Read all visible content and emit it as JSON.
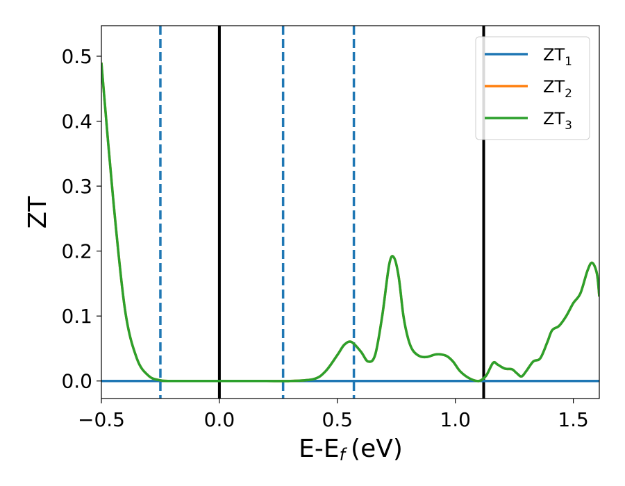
{
  "chart_data": {
    "type": "line",
    "title": "",
    "xlabel": "E-E",
    "xlabel_sub": "f",
    "xlabel_unit": "(eV)",
    "ylabel": "ZT",
    "xlim": [
      -0.5,
      1.61
    ],
    "ylim": [
      -0.027,
      0.547
    ],
    "xticks": [
      -0.5,
      0.0,
      0.5,
      1.0,
      1.5
    ],
    "xtick_labels": [
      "−0.5",
      "0.0",
      "0.5",
      "1.0",
      "1.5"
    ],
    "yticks": [
      0.0,
      0.1,
      0.2,
      0.3,
      0.4,
      0.5
    ],
    "ytick_labels": [
      "0.0",
      "0.1",
      "0.2",
      "0.3",
      "0.4",
      "0.5"
    ],
    "grid": false,
    "legend_position": "top-right",
    "vlines": [
      {
        "x": -0.25,
        "style": "dashed",
        "color": "#1f77b4"
      },
      {
        "x": 0.0,
        "style": "solid",
        "color": "#000000"
      },
      {
        "x": 0.27,
        "style": "dashed",
        "color": "#1f77b4"
      },
      {
        "x": 0.57,
        "style": "dashed",
        "color": "#1f77b4"
      },
      {
        "x": 1.12,
        "style": "solid",
        "color": "#000000"
      }
    ],
    "series": [
      {
        "name": "ZT",
        "name_sub": "1",
        "color": "#1f77b4",
        "x": [
          -0.5,
          1.61
        ],
        "y": [
          0.0,
          0.0
        ]
      },
      {
        "name": "ZT",
        "name_sub": "2",
        "color": "#ff7f0e",
        "x": [
          -0.5,
          -0.45,
          -0.4,
          -0.35,
          -0.3,
          -0.25,
          -0.2,
          -0.1,
          0.0,
          0.1,
          0.2,
          0.3,
          0.4,
          0.45,
          0.5,
          0.53,
          0.56,
          0.6,
          0.63,
          0.66,
          0.69,
          0.72,
          0.74,
          0.76,
          0.78,
          0.8,
          0.82,
          0.85,
          0.88,
          0.92,
          0.96,
          0.99,
          1.02,
          1.06,
          1.1,
          1.13,
          1.16,
          1.18,
          1.21,
          1.24,
          1.26,
          1.28,
          1.3,
          1.33,
          1.36,
          1.39,
          1.41,
          1.44,
          1.47,
          1.5,
          1.53,
          1.56,
          1.58,
          1.6,
          1.61
        ],
        "y": [
          0.49,
          0.28,
          0.11,
          0.035,
          0.008,
          0.001,
          0.0,
          0.0,
          0.0,
          0.0,
          0.0,
          0.0,
          0.003,
          0.015,
          0.04,
          0.056,
          0.06,
          0.045,
          0.03,
          0.04,
          0.1,
          0.18,
          0.19,
          0.16,
          0.1,
          0.065,
          0.047,
          0.038,
          0.037,
          0.041,
          0.039,
          0.03,
          0.015,
          0.004,
          0.0,
          0.008,
          0.028,
          0.025,
          0.019,
          0.018,
          0.012,
          0.007,
          0.015,
          0.03,
          0.035,
          0.06,
          0.078,
          0.085,
          0.1,
          0.12,
          0.135,
          0.17,
          0.182,
          0.165,
          0.13
        ]
      },
      {
        "name": "ZT",
        "name_sub": "3",
        "color": "#2ca02c",
        "x": [
          -0.5,
          -0.45,
          -0.4,
          -0.35,
          -0.3,
          -0.25,
          -0.2,
          -0.1,
          0.0,
          0.1,
          0.2,
          0.3,
          0.4,
          0.45,
          0.5,
          0.53,
          0.56,
          0.6,
          0.63,
          0.66,
          0.69,
          0.72,
          0.74,
          0.76,
          0.78,
          0.8,
          0.82,
          0.85,
          0.88,
          0.92,
          0.96,
          0.99,
          1.02,
          1.06,
          1.1,
          1.13,
          1.16,
          1.18,
          1.21,
          1.24,
          1.26,
          1.28,
          1.3,
          1.33,
          1.36,
          1.39,
          1.41,
          1.44,
          1.47,
          1.5,
          1.53,
          1.56,
          1.58,
          1.6,
          1.61
        ],
        "y": [
          0.49,
          0.28,
          0.11,
          0.035,
          0.008,
          0.001,
          0.0,
          0.0,
          0.0,
          0.0,
          0.0,
          0.0,
          0.003,
          0.015,
          0.04,
          0.056,
          0.06,
          0.045,
          0.03,
          0.04,
          0.1,
          0.18,
          0.19,
          0.16,
          0.1,
          0.065,
          0.047,
          0.038,
          0.037,
          0.041,
          0.039,
          0.03,
          0.015,
          0.004,
          0.0,
          0.008,
          0.028,
          0.025,
          0.019,
          0.018,
          0.012,
          0.007,
          0.015,
          0.03,
          0.035,
          0.06,
          0.078,
          0.085,
          0.1,
          0.12,
          0.135,
          0.17,
          0.182,
          0.165,
          0.13
        ]
      }
    ]
  }
}
